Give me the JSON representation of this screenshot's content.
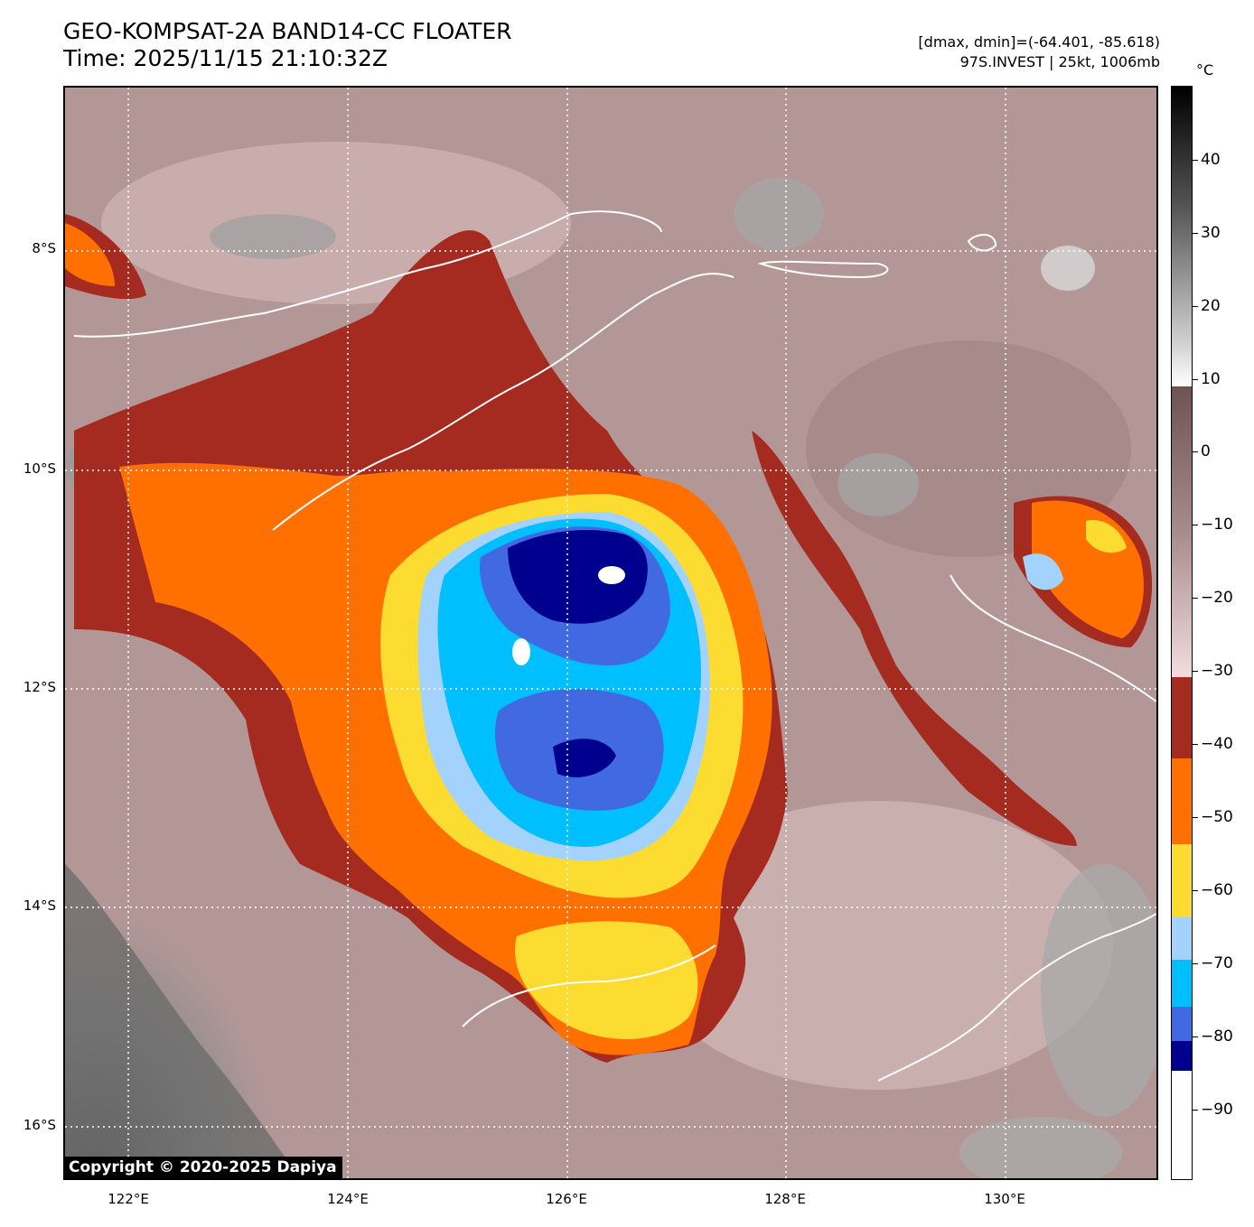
{
  "header": {
    "title": "GEO-KOMPSAT-2A BAND14-CC FLOATER",
    "time": "Time: 2025/11/15 21:10:32Z",
    "dmax_dmin": "[dmax, dmin]=(-64.401, -85.618)",
    "storm": "97S.INVEST | 25kt, 1006mb"
  },
  "map": {
    "copyright": "Copyright © 2020-2025 Dapiya",
    "lat_labels": [
      "8°S",
      "10°S",
      "12°S",
      "14°S",
      "16°S"
    ],
    "lon_labels": [
      "122°E",
      "124°E",
      "126°E",
      "128°E",
      "130°E"
    ],
    "colors": {
      "background": "#b39797",
      "land_gray": "#8a8a8a",
      "dark_red": "#a52a1f",
      "orange": "#ff7000",
      "yellow": "#fddc32",
      "light_blue": "#a3d2fc",
      "cyan": "#00bfff",
      "royal_blue": "#4169e1",
      "navy": "#00008f"
    }
  },
  "colorbar": {
    "unit": "°C",
    "ticks": [
      "40",
      "30",
      "20",
      "10",
      "0",
      "−10",
      "−20",
      "−30",
      "−40",
      "−50",
      "−60",
      "−70",
      "−80",
      "−90"
    ],
    "range": [
      -100,
      50
    ]
  }
}
